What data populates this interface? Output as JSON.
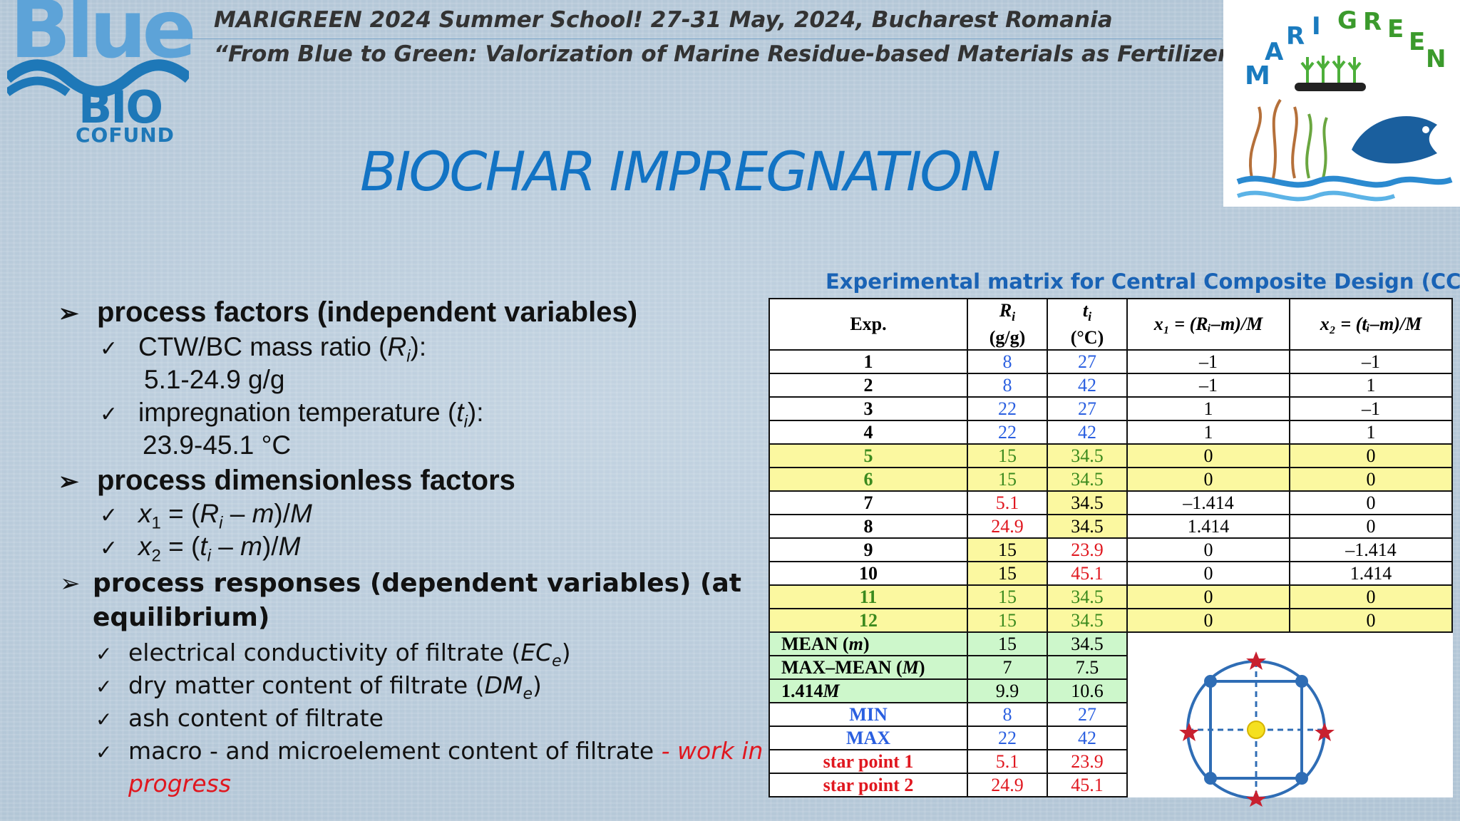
{
  "header": {
    "line1": "MARIGREEN 2024 Summer School! 27-31 May, 2024, Bucharest Romania",
    "line2": "“From Blue to Green: Valorization of Marine Residue-based Materials as Fertilizers”",
    "logo_left": {
      "word1": "Blue",
      "word2": "BIO",
      "word3": "COFUND"
    },
    "logo_right": {
      "text": "MARI GREEN"
    }
  },
  "title": "BIOCHAR IMPREGNATION",
  "bullets": {
    "factors": {
      "heading": "process factors (independent variables)",
      "item1_label": "CTW/BC mass ratio (",
      "item1_var": "R",
      "item1_sub": "i",
      "item1_end": "):",
      "item1_range": "5.1-24.9 g/g",
      "item2_label": "impregnation temperature (",
      "item2_var": "t",
      "item2_sub": "i",
      "item2_end": "):",
      "item2_range": "23.9-45.1 °C"
    },
    "dimless": {
      "heading": "process dimensionless factors",
      "x1_a": "x",
      "x1_sub": "1",
      "x1_b": " = (",
      "x1_c": "R",
      "x1_d": "i",
      "x1_e": " – ",
      "x1_f": "m",
      "x1_g": ")/",
      "x1_h": "M",
      "x2_a": "x",
      "x2_sub": "2",
      "x2_b": " = (",
      "x2_c": "t",
      "x2_d": "i",
      "x2_e": " – ",
      "x2_f": "m",
      "x2_g": ")/",
      "x2_h": "M"
    },
    "responses": {
      "heading_line1": "process responses (dependent variables) (at",
      "heading_line2": "equilibrium)",
      "r1_text": "electrical conductivity of filtrate (",
      "r1_var": "EC",
      "r1_sub": "e",
      "r1_end": ")",
      "r2_text": "dry matter content of filtrate (",
      "r2_var": "DM",
      "r2_sub": "e",
      "r2_end": ")",
      "r3_text": "ash content of filtrate",
      "r4_text": "macro - and microelement content of filtrate",
      "r4_red": " - work in",
      "r4_red2": "progress"
    }
  },
  "table": {
    "caption": "Experimental matrix for Central Composite Design (CCD)",
    "headers": {
      "exp": "Exp.",
      "r_var": "R",
      "r_sub": "i",
      "r_unit": "(g/g)",
      "t_var": "t",
      "t_sub": "i",
      "t_unit": "(°C)",
      "x1": "x₁ = (Rᵢ–m)/M",
      "x2": "x₂ = (tᵢ–m)/M"
    },
    "rows": [
      {
        "exp": "1",
        "r": "8",
        "t": "27",
        "x1": "–1",
        "x2": "–1"
      },
      {
        "exp": "2",
        "r": "8",
        "t": "42",
        "x1": "–1",
        "x2": "1"
      },
      {
        "exp": "3",
        "r": "22",
        "t": "27",
        "x1": "1",
        "x2": "–1"
      },
      {
        "exp": "4",
        "r": "22",
        "t": "42",
        "x1": "1",
        "x2": "1"
      },
      {
        "exp": "5",
        "r": "15",
        "t": "34.5",
        "x1": "0",
        "x2": "0"
      },
      {
        "exp": "6",
        "r": "15",
        "t": "34.5",
        "x1": "0",
        "x2": "0"
      },
      {
        "exp": "7",
        "r": "5.1",
        "t": "34.5",
        "x1": "–1.414",
        "x2": "0"
      },
      {
        "exp": "8",
        "r": "24.9",
        "t": "34.5",
        "x1": "1.414",
        "x2": "0"
      },
      {
        "exp": "9",
        "r": "15",
        "t": "23.9",
        "x1": "0",
        "x2": "–1.414"
      },
      {
        "exp": "10",
        "r": "15",
        "t": "45.1",
        "x1": "0",
        "x2": "1.414"
      },
      {
        "exp": "11",
        "r": "15",
        "t": "34.5",
        "x1": "0",
        "x2": "0"
      },
      {
        "exp": "12",
        "r": "15",
        "t": "34.5",
        "x1": "0",
        "x2": "0"
      }
    ],
    "summary": [
      {
        "label": "MEAN (m)",
        "r": "15",
        "t": "34.5"
      },
      {
        "label": "MAX–MEAN (M)",
        "r": "7",
        "t": "7.5"
      },
      {
        "label": "1.414M",
        "r": "9.9",
        "t": "10.6"
      },
      {
        "label": "MIN",
        "r": "8",
        "t": "27"
      },
      {
        "label": "MAX",
        "r": "22",
        "t": "42"
      },
      {
        "label": "star point 1",
        "r": "5.1",
        "t": "23.9"
      },
      {
        "label": "star point 2",
        "r": "24.9",
        "t": "45.1"
      }
    ]
  }
}
